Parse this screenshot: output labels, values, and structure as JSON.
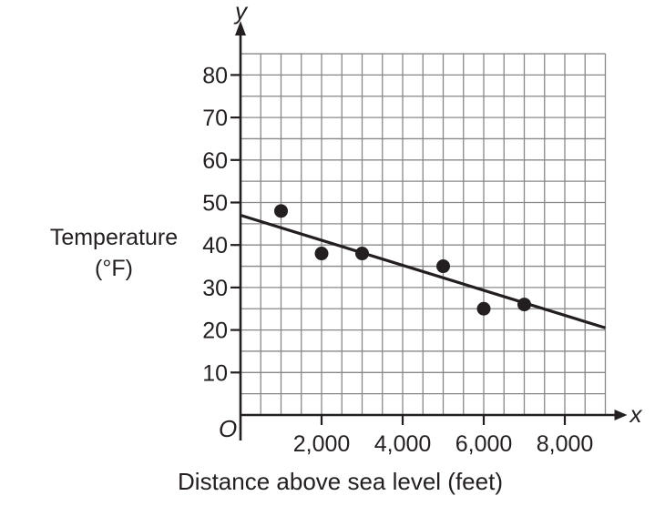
{
  "chart_data": {
    "type": "scatter",
    "title": "",
    "xlabel": "Distance above sea level (feet)",
    "ylabel_line1": "Temperature",
    "ylabel_line2": "(°F)",
    "x_axis_var": "x",
    "y_axis_var": "y",
    "origin_label": "O",
    "xlim": [
      0,
      9000
    ],
    "ylim": [
      0,
      85
    ],
    "x_ticks": [
      2000,
      4000,
      6000,
      8000
    ],
    "x_tick_labels": [
      "2,000",
      "4,000",
      "6,000",
      "8,000"
    ],
    "y_ticks": [
      10,
      20,
      30,
      40,
      50,
      60,
      70,
      80
    ],
    "y_tick_labels": [
      "10",
      "20",
      "30",
      "40",
      "50",
      "60",
      "70",
      "80"
    ],
    "grid": true,
    "points": [
      {
        "x": 1000,
        "y": 48
      },
      {
        "x": 2000,
        "y": 38
      },
      {
        "x": 3000,
        "y": 38
      },
      {
        "x": 5000,
        "y": 35
      },
      {
        "x": 6000,
        "y": 25
      },
      {
        "x": 7000,
        "y": 26
      }
    ],
    "trend_line": {
      "x": [
        0,
        9000
      ],
      "y": [
        47,
        20.5
      ]
    },
    "colors": {
      "ink": "#231f20",
      "grid": "#888888"
    }
  }
}
